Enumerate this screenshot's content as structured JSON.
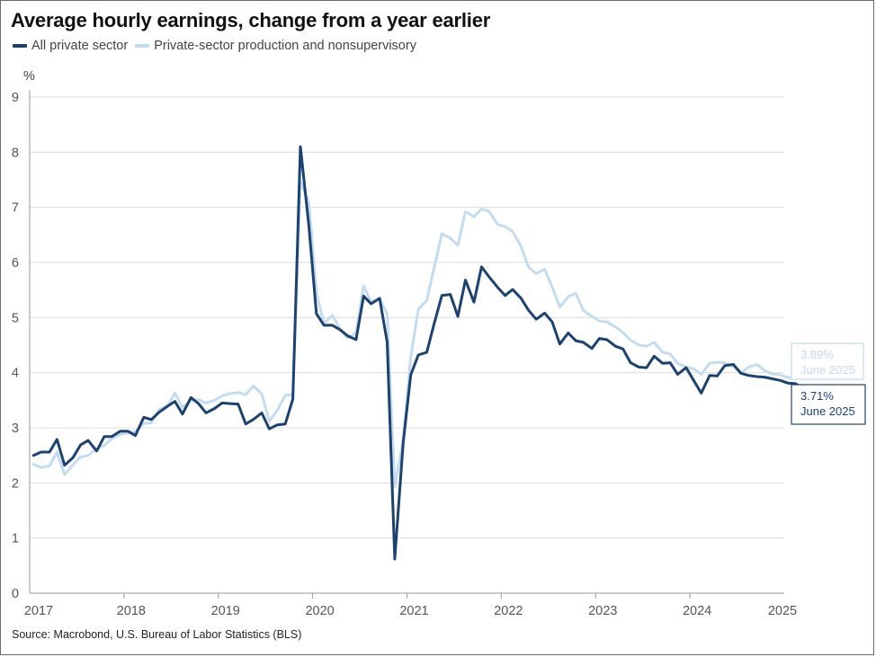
{
  "chart_data": {
    "type": "line",
    "title": "Average hourly earnings, change from a year earlier",
    "ylabel": "%",
    "ylim": [
      0,
      9
    ],
    "yticks": [
      "0",
      "1",
      "2",
      "3",
      "4",
      "5",
      "6",
      "7",
      "8",
      "9"
    ],
    "xlim": [
      2017.0,
      2025.0
    ],
    "xticks": [
      "2017",
      "2018",
      "2019",
      "2020",
      "2021",
      "2022",
      "2023",
      "2024",
      "2025"
    ],
    "x_tick_values": [
      2017,
      2018,
      2019,
      2020,
      2021,
      2022,
      2023,
      2024,
      2025
    ],
    "grid": "horizontal",
    "legend_position": "top-left",
    "series": [
      {
        "name": "All private sector",
        "color": "#1c4272",
        "points": [
          [
            2017.04,
            2.5
          ],
          [
            2017.12,
            2.56
          ],
          [
            2017.21,
            2.56
          ],
          [
            2017.29,
            2.79
          ],
          [
            2017.37,
            2.32
          ],
          [
            2017.46,
            2.46
          ],
          [
            2017.54,
            2.69
          ],
          [
            2017.62,
            2.77
          ],
          [
            2017.71,
            2.58
          ],
          [
            2017.79,
            2.84
          ],
          [
            2017.87,
            2.84
          ],
          [
            2017.96,
            2.94
          ],
          [
            2018.04,
            2.94
          ],
          [
            2018.12,
            2.86
          ],
          [
            2018.21,
            3.19
          ],
          [
            2018.29,
            3.15
          ],
          [
            2018.37,
            3.28
          ],
          [
            2018.46,
            3.39
          ],
          [
            2018.54,
            3.48
          ],
          [
            2018.62,
            3.25
          ],
          [
            2018.71,
            3.55
          ],
          [
            2018.79,
            3.44
          ],
          [
            2018.87,
            3.27
          ],
          [
            2018.96,
            3.35
          ],
          [
            2019.04,
            3.45
          ],
          [
            2019.12,
            3.44
          ],
          [
            2019.21,
            3.43
          ],
          [
            2019.29,
            3.07
          ],
          [
            2019.37,
            3.15
          ],
          [
            2019.46,
            3.27
          ],
          [
            2019.54,
            2.98
          ],
          [
            2019.62,
            3.05
          ],
          [
            2019.71,
            3.07
          ],
          [
            2019.79,
            3.52
          ],
          [
            2019.87,
            8.1
          ],
          [
            2019.96,
            6.67
          ],
          [
            2020.04,
            5.07
          ],
          [
            2020.12,
            4.86
          ],
          [
            2020.21,
            4.86
          ],
          [
            2020.29,
            4.78
          ],
          [
            2020.37,
            4.67
          ],
          [
            2020.46,
            4.6
          ],
          [
            2020.54,
            5.39
          ],
          [
            2020.62,
            5.25
          ],
          [
            2020.71,
            5.35
          ],
          [
            2020.79,
            4.55
          ],
          [
            2020.87,
            0.62
          ],
          [
            2020.96,
            2.73
          ],
          [
            2021.04,
            3.96
          ],
          [
            2021.12,
            4.32
          ],
          [
            2021.21,
            4.37
          ],
          [
            2021.29,
            4.9
          ],
          [
            2021.37,
            5.4
          ],
          [
            2021.46,
            5.42
          ],
          [
            2021.54,
            5.02
          ],
          [
            2021.62,
            5.68
          ],
          [
            2021.71,
            5.28
          ],
          [
            2021.79,
            5.92
          ],
          [
            2021.87,
            5.74
          ],
          [
            2021.96,
            5.55
          ],
          [
            2022.04,
            5.4
          ],
          [
            2022.12,
            5.51
          ],
          [
            2022.21,
            5.35
          ],
          [
            2022.29,
            5.13
          ],
          [
            2022.37,
            4.97
          ],
          [
            2022.46,
            5.08
          ],
          [
            2022.54,
            4.92
          ],
          [
            2022.62,
            4.52
          ],
          [
            2022.71,
            4.72
          ],
          [
            2022.79,
            4.58
          ],
          [
            2022.87,
            4.55
          ],
          [
            2022.96,
            4.44
          ],
          [
            2023.04,
            4.62
          ],
          [
            2023.12,
            4.6
          ],
          [
            2023.21,
            4.48
          ],
          [
            2023.29,
            4.43
          ],
          [
            2023.37,
            4.18
          ],
          [
            2023.46,
            4.1
          ],
          [
            2023.54,
            4.09
          ],
          [
            2023.62,
            4.3
          ],
          [
            2023.71,
            4.17
          ],
          [
            2023.79,
            4.18
          ],
          [
            2023.87,
            3.97
          ],
          [
            2023.96,
            4.09
          ],
          [
            2024.04,
            3.86
          ],
          [
            2024.12,
            3.63
          ],
          [
            2024.21,
            3.95
          ],
          [
            2024.29,
            3.94
          ],
          [
            2024.37,
            4.13
          ],
          [
            2024.46,
            4.15
          ],
          [
            2024.54,
            3.99
          ],
          [
            2024.62,
            3.95
          ],
          [
            2024.71,
            3.93
          ],
          [
            2024.79,
            3.92
          ],
          [
            2024.87,
            3.89
          ],
          [
            2024.96,
            3.86
          ],
          [
            2025.04,
            3.81
          ],
          [
            2025.12,
            3.8
          ],
          [
            2025.21,
            3.71
          ]
        ]
      },
      {
        "name": "Private-sector production and nonsupervisory",
        "color": "#c3dcf0",
        "points": [
          [
            2017.04,
            2.34
          ],
          [
            2017.12,
            2.28
          ],
          [
            2017.21,
            2.31
          ],
          [
            2017.29,
            2.56
          ],
          [
            2017.37,
            2.15
          ],
          [
            2017.46,
            2.33
          ],
          [
            2017.54,
            2.47
          ],
          [
            2017.62,
            2.5
          ],
          [
            2017.71,
            2.62
          ],
          [
            2017.79,
            2.68
          ],
          [
            2017.87,
            2.8
          ],
          [
            2017.96,
            2.88
          ],
          [
            2018.04,
            2.91
          ],
          [
            2018.12,
            2.93
          ],
          [
            2018.21,
            3.08
          ],
          [
            2018.29,
            3.09
          ],
          [
            2018.37,
            3.33
          ],
          [
            2018.46,
            3.4
          ],
          [
            2018.54,
            3.63
          ],
          [
            2018.62,
            3.37
          ],
          [
            2018.71,
            3.49
          ],
          [
            2018.79,
            3.51
          ],
          [
            2018.87,
            3.45
          ],
          [
            2018.96,
            3.5
          ],
          [
            2019.04,
            3.58
          ],
          [
            2019.12,
            3.62
          ],
          [
            2019.21,
            3.64
          ],
          [
            2019.29,
            3.6
          ],
          [
            2019.37,
            3.76
          ],
          [
            2019.46,
            3.62
          ],
          [
            2019.54,
            3.12
          ],
          [
            2019.62,
            3.3
          ],
          [
            2019.71,
            3.59
          ],
          [
            2019.79,
            3.6
          ],
          [
            2019.87,
            7.47
          ],
          [
            2019.96,
            7.09
          ],
          [
            2020.04,
            5.46
          ],
          [
            2020.12,
            4.9
          ],
          [
            2020.21,
            5.04
          ],
          [
            2020.29,
            4.8
          ],
          [
            2020.37,
            4.63
          ],
          [
            2020.46,
            4.72
          ],
          [
            2020.54,
            5.58
          ],
          [
            2020.62,
            5.28
          ],
          [
            2020.71,
            5.34
          ],
          [
            2020.79,
            5.07
          ],
          [
            2020.87,
            1.93
          ],
          [
            2020.96,
            2.78
          ],
          [
            2021.04,
            4.28
          ],
          [
            2021.12,
            5.15
          ],
          [
            2021.21,
            5.31
          ],
          [
            2021.29,
            5.92
          ],
          [
            2021.37,
            6.52
          ],
          [
            2021.46,
            6.44
          ],
          [
            2021.54,
            6.31
          ],
          [
            2021.62,
            6.92
          ],
          [
            2021.71,
            6.83
          ],
          [
            2021.79,
            6.97
          ],
          [
            2021.87,
            6.93
          ],
          [
            2021.96,
            6.69
          ],
          [
            2022.04,
            6.65
          ],
          [
            2022.12,
            6.56
          ],
          [
            2022.21,
            6.29
          ],
          [
            2022.29,
            5.91
          ],
          [
            2022.37,
            5.8
          ],
          [
            2022.46,
            5.88
          ],
          [
            2022.54,
            5.55
          ],
          [
            2022.62,
            5.19
          ],
          [
            2022.71,
            5.38
          ],
          [
            2022.79,
            5.44
          ],
          [
            2022.87,
            5.13
          ],
          [
            2022.96,
            5.02
          ],
          [
            2023.04,
            4.94
          ],
          [
            2023.12,
            4.92
          ],
          [
            2023.21,
            4.83
          ],
          [
            2023.29,
            4.73
          ],
          [
            2023.37,
            4.59
          ],
          [
            2023.46,
            4.5
          ],
          [
            2023.54,
            4.48
          ],
          [
            2023.62,
            4.55
          ],
          [
            2023.71,
            4.37
          ],
          [
            2023.79,
            4.34
          ],
          [
            2023.87,
            4.17
          ],
          [
            2023.96,
            4.1
          ],
          [
            2024.04,
            4.07
          ],
          [
            2024.12,
            3.97
          ],
          [
            2024.21,
            4.17
          ],
          [
            2024.29,
            4.19
          ],
          [
            2024.37,
            4.18
          ],
          [
            2024.46,
            4.11
          ],
          [
            2024.54,
            3.99
          ],
          [
            2024.62,
            4.1
          ],
          [
            2024.71,
            4.15
          ],
          [
            2024.79,
            4.04
          ],
          [
            2024.87,
            3.98
          ],
          [
            2024.96,
            3.96
          ],
          [
            2025.04,
            3.91
          ],
          [
            2025.12,
            3.92
          ],
          [
            2025.21,
            3.89
          ]
        ]
      }
    ],
    "annotations": [
      {
        "value_text": "3.89%",
        "date_text": "June 2025",
        "color": "#c3dcf0",
        "series": "Private-sector production and nonsupervisory"
      },
      {
        "value_text": "3.71%",
        "date_text": "June 2025",
        "color": "#1c4272",
        "series": "All private sector"
      }
    ]
  },
  "legend": {
    "items": [
      {
        "label": "All private sector",
        "color": "#1c4272"
      },
      {
        "label": "Private-sector production and nonsupervisory",
        "color": "#c3dcf0"
      }
    ]
  },
  "source": "Source: Macrobond, U.S. Bureau of Labor Statistics (BLS)"
}
